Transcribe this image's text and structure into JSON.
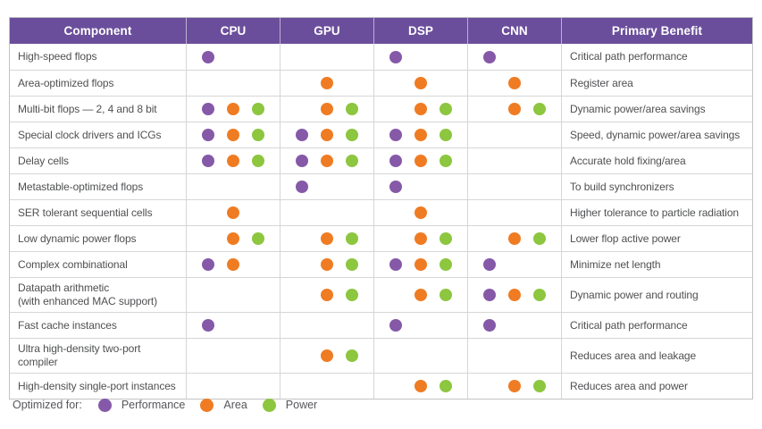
{
  "colors": {
    "header_bg": "#6B4E9B",
    "header_text": "#ffffff",
    "performance": "#8559A8",
    "area": "#EF7C23",
    "power": "#8DC63F",
    "border": "#c3c3c3",
    "row_text": "#4f5052"
  },
  "table": {
    "headers": [
      "Component",
      "CPU",
      "GPU",
      "DSP",
      "CNN",
      "Primary Benefit"
    ],
    "rows": [
      {
        "component": "High-speed flops",
        "cpu": "P--",
        "gpu": "---",
        "dsp": "P--",
        "cnn": "P--",
        "benefit": "Critical path performance"
      },
      {
        "component": "Area-optimized flops",
        "cpu": "---",
        "gpu": "-A-",
        "dsp": "-A-",
        "cnn": "-A-",
        "benefit": "Register area"
      },
      {
        "component": "Multi-bit flops — 2, 4 and 8 bit",
        "cpu": "PAW",
        "gpu": "-AW",
        "dsp": "-AW",
        "cnn": "-AW",
        "benefit": "Dynamic power/area savings"
      },
      {
        "component": "Special clock drivers and ICGs",
        "cpu": "PAW",
        "gpu": "PAW",
        "dsp": "PAW",
        "cnn": "---",
        "benefit": "Speed, dynamic power/area savings"
      },
      {
        "component": "Delay cells",
        "cpu": "PAW",
        "gpu": "PAW",
        "dsp": "PAW",
        "cnn": "---",
        "benefit": "Accurate hold fixing/area"
      },
      {
        "component": "Metastable-optimized flops",
        "cpu": "---",
        "gpu": "P--",
        "dsp": "P--",
        "cnn": "---",
        "benefit": "To build synchronizers"
      },
      {
        "component": "SER tolerant sequential cells",
        "cpu": "-A-",
        "gpu": "---",
        "dsp": "-A-",
        "cnn": "---",
        "benefit": "Higher tolerance to particle radiation"
      },
      {
        "component": "Low dynamic power flops",
        "cpu": "-AW",
        "gpu": "-AW",
        "dsp": "-AW",
        "cnn": "-AW",
        "benefit": "Lower flop active power"
      },
      {
        "component": "Complex combinational",
        "cpu": "PA-",
        "gpu": "-AW",
        "dsp": "PAW",
        "cnn": "P--",
        "benefit": "Minimize net length"
      },
      {
        "component": "Datapath arithmetic",
        "component2": "(with enhanced MAC support)",
        "cpu": "---",
        "gpu": "-AW",
        "dsp": "-AW",
        "cnn": "PAW",
        "benefit": "Dynamic power and routing"
      },
      {
        "component": "Fast cache instances",
        "cpu": "P--",
        "gpu": "---",
        "dsp": "P--",
        "cnn": "P--",
        "benefit": "Critical path performance"
      },
      {
        "component": "Ultra high-density two-port compiler",
        "cpu": "---",
        "gpu": "-AW",
        "dsp": "---",
        "cnn": "---",
        "benefit": "Reduces area and leakage"
      },
      {
        "component": "High-density single-port instances",
        "cpu": "---",
        "gpu": "---",
        "dsp": "-AW",
        "cnn": "-AW",
        "benefit": "Reduces area and power"
      }
    ]
  },
  "legend": {
    "label": "Optimized for:",
    "items": [
      {
        "label": "Performance",
        "key": "performance"
      },
      {
        "label": "Area",
        "key": "area"
      },
      {
        "label": "Power",
        "key": "power"
      }
    ]
  }
}
